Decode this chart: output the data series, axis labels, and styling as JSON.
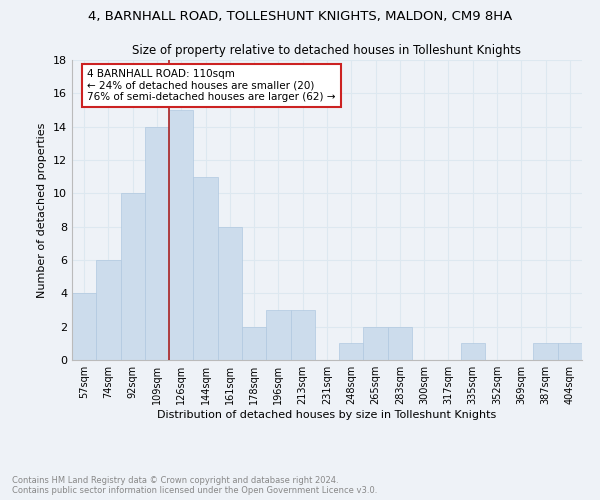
{
  "title": "4, BARNHALL ROAD, TOLLESHUNT KNIGHTS, MALDON, CM9 8HA",
  "subtitle": "Size of property relative to detached houses in Tolleshunt Knights",
  "xlabel": "Distribution of detached houses by size in Tolleshunt Knights",
  "ylabel": "Number of detached properties",
  "bin_labels": [
    "57sqm",
    "74sqm",
    "92sqm",
    "109sqm",
    "126sqm",
    "144sqm",
    "161sqm",
    "178sqm",
    "196sqm",
    "213sqm",
    "231sqm",
    "248sqm",
    "265sqm",
    "283sqm",
    "300sqm",
    "317sqm",
    "335sqm",
    "352sqm",
    "369sqm",
    "387sqm",
    "404sqm"
  ],
  "bar_heights": [
    4,
    6,
    10,
    14,
    15,
    11,
    8,
    2,
    3,
    3,
    0,
    1,
    2,
    2,
    0,
    0,
    1,
    0,
    0,
    1,
    1
  ],
  "bar_color": "#ccdcec",
  "bar_edge_color": "#b0c8e0",
  "grid_color": "#dde8f0",
  "vline_x_index": 3,
  "vline_color": "#aa2222",
  "annotation_text": "4 BARNHALL ROAD: 110sqm\n← 24% of detached houses are smaller (20)\n76% of semi-detached houses are larger (62) →",
  "annotation_box_color": "#ffffff",
  "annotation_box_edge": "#cc2222",
  "ylim": [
    0,
    18
  ],
  "yticks": [
    0,
    2,
    4,
    6,
    8,
    10,
    12,
    14,
    16,
    18
  ],
  "footnote": "Contains HM Land Registry data © Crown copyright and database right 2024.\nContains public sector information licensed under the Open Government Licence v3.0.",
  "background_color": "#eef2f7",
  "plot_background": "#eef2f7"
}
